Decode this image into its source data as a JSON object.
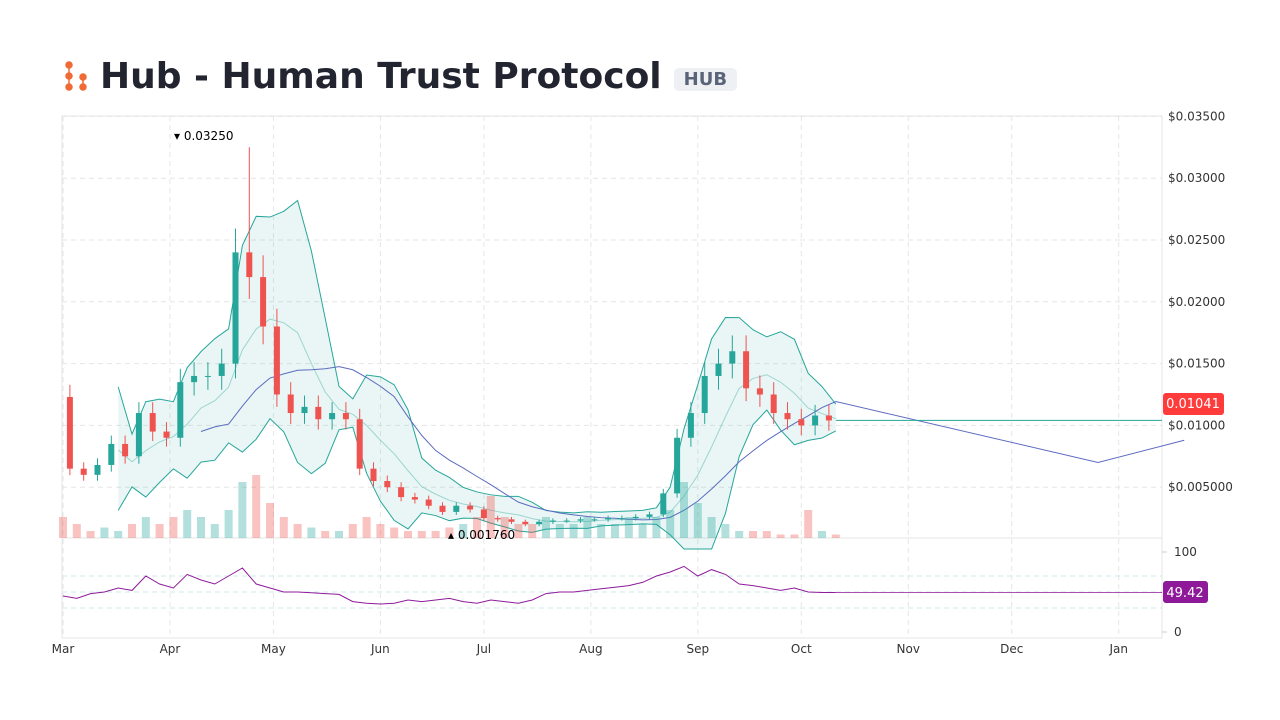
{
  "header": {
    "title": "Hub - Human Trust Protocol",
    "symbol": "HUB"
  },
  "chart_data": {
    "type": "candlestick",
    "y_ticks": [
      "$0.03500",
      "$0.03000",
      "$0.02500",
      "$0.02000",
      "$0.01500",
      "$0.01000",
      "$0.005000"
    ],
    "y_tick_values": [
      0.035,
      0.03,
      0.025,
      0.02,
      0.015,
      0.01,
      0.005
    ],
    "x_ticks": [
      "Mar",
      "Apr",
      "May",
      "Jun",
      "Jul",
      "Aug",
      "Sep",
      "Oct",
      "Nov",
      "Dec",
      "Jan"
    ],
    "rsi_ticks": [
      "100",
      "0"
    ],
    "high_label": "0.03250",
    "low_label": "0.001760",
    "last_price": "0.01041",
    "last_rsi": "49.42",
    "colors": {
      "up": "#26a69a",
      "down": "#ef5350",
      "band": "#26a69a",
      "ma": "#5c6bc0",
      "rsi": "#8e1a9a",
      "price_tag": "#ff3b3b",
      "rsi_tag": "#8e1a9a"
    },
    "closes": [
      [
        0,
        0.0123
      ],
      [
        4,
        0.0065
      ],
      [
        8,
        0.006
      ],
      [
        12,
        0.0068
      ],
      [
        16,
        0.0085
      ],
      [
        20,
        0.0075
      ],
      [
        24,
        0.011
      ],
      [
        28,
        0.0095
      ],
      [
        32,
        0.009
      ],
      [
        36,
        0.0135
      ],
      [
        40,
        0.014
      ],
      [
        44,
        0.014
      ],
      [
        48,
        0.015
      ],
      [
        52,
        0.024
      ],
      [
        56,
        0.022
      ],
      [
        60,
        0.018
      ],
      [
        64,
        0.0125
      ],
      [
        68,
        0.011
      ],
      [
        72,
        0.0115
      ],
      [
        76,
        0.0105
      ],
      [
        80,
        0.011
      ],
      [
        84,
        0.0105
      ],
      [
        88,
        0.0065
      ],
      [
        92,
        0.0055
      ],
      [
        96,
        0.005
      ],
      [
        100,
        0.0042
      ],
      [
        104,
        0.004
      ],
      [
        108,
        0.0035
      ],
      [
        112,
        0.003
      ],
      [
        116,
        0.0035
      ],
      [
        120,
        0.0032
      ],
      [
        124,
        0.0025
      ],
      [
        128,
        0.0024
      ],
      [
        132,
        0.0022
      ],
      [
        136,
        0.002
      ],
      [
        140,
        0.0022
      ],
      [
        144,
        0.0023
      ],
      [
        148,
        0.0023
      ],
      [
        152,
        0.0024
      ],
      [
        156,
        0.0024
      ],
      [
        160,
        0.0025
      ],
      [
        164,
        0.0025
      ],
      [
        168,
        0.0026
      ],
      [
        172,
        0.0028
      ],
      [
        176,
        0.0045
      ],
      [
        180,
        0.009
      ],
      [
        184,
        0.011
      ],
      [
        188,
        0.014
      ],
      [
        192,
        0.015
      ],
      [
        196,
        0.016
      ],
      [
        200,
        0.013
      ],
      [
        204,
        0.0125
      ],
      [
        208,
        0.011
      ],
      [
        212,
        0.0105
      ],
      [
        216,
        0.01
      ],
      [
        220,
        0.0108
      ],
      [
        224,
        0.0104
      ]
    ],
    "volumes": [
      0.3,
      0.2,
      0.1,
      0.15,
      0.1,
      0.2,
      0.3,
      0.2,
      0.3,
      0.4,
      0.3,
      0.2,
      0.4,
      0.8,
      0.9,
      0.5,
      0.3,
      0.2,
      0.15,
      0.1,
      0.1,
      0.2,
      0.3,
      0.2,
      0.15,
      0.1,
      0.1,
      0.1,
      0.15,
      0.2,
      0.3,
      0.6,
      0.3,
      0.2,
      0.2,
      0.3,
      0.2,
      0.2,
      0.3,
      0.2,
      0.2,
      0.3,
      0.2,
      0.3,
      0.4,
      0.8,
      0.5,
      0.3,
      0.2,
      0.1,
      0.1,
      0.1,
      0.05,
      0.05,
      0.4,
      0.1,
      0.05
    ],
    "rsi": [
      45,
      42,
      48,
      50,
      55,
      52,
      70,
      60,
      55,
      72,
      65,
      60,
      70,
      80,
      60,
      55,
      50,
      50,
      49,
      48,
      47,
      38,
      36,
      35,
      36,
      40,
      38,
      40,
      42,
      38,
      36,
      40,
      38,
      36,
      40,
      48,
      50,
      50,
      52,
      54,
      56,
      58,
      62,
      70,
      75,
      82,
      70,
      78,
      72,
      60,
      58,
      55,
      52,
      55,
      50,
      49.42,
      49.42
    ]
  }
}
